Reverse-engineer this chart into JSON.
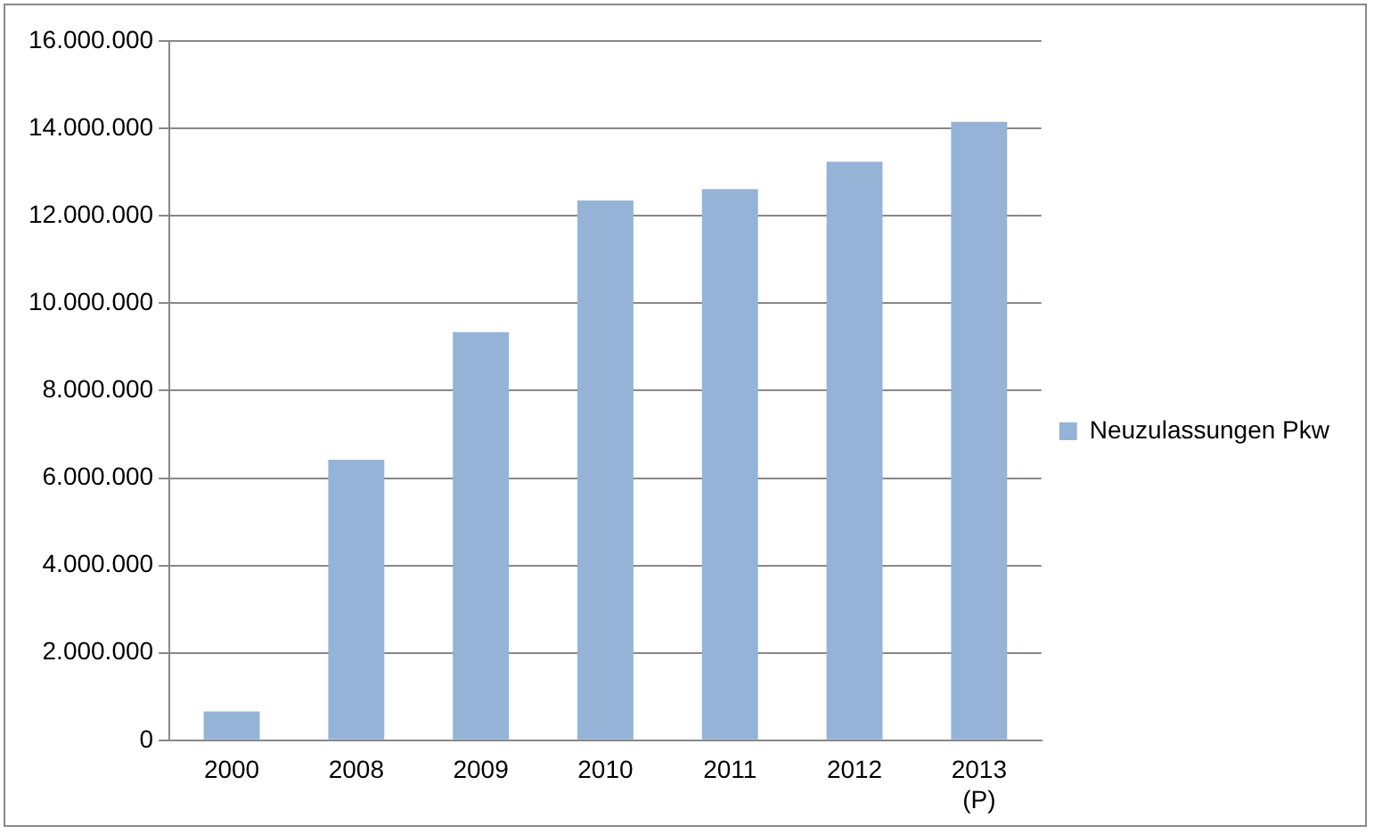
{
  "chart_data": {
    "type": "bar",
    "categories": [
      "2000",
      "2008",
      "2009",
      "2010",
      "2011",
      "2012",
      "2013\n(P)"
    ],
    "series": [
      {
        "name": "Neuzulassungen Pkw",
        "color": "#95b3d7",
        "values": [
          660000,
          6420000,
          9340000,
          12350000,
          12610000,
          13240000,
          14150000
        ]
      }
    ],
    "ylim": [
      0,
      16000000
    ],
    "yticks": [
      {
        "value": 0,
        "label": "0"
      },
      {
        "value": 2000000,
        "label": "2.000.000"
      },
      {
        "value": 4000000,
        "label": "4.000.000"
      },
      {
        "value": 6000000,
        "label": "6.000.000"
      },
      {
        "value": 8000000,
        "label": "8.000.000"
      },
      {
        "value": 10000000,
        "label": "10.000.000"
      },
      {
        "value": 12000000,
        "label": "12.000.000"
      },
      {
        "value": 14000000,
        "label": "14.000.000"
      },
      {
        "value": 16000000,
        "label": "16.000.000"
      }
    ],
    "grid": "y",
    "legend": "right"
  }
}
